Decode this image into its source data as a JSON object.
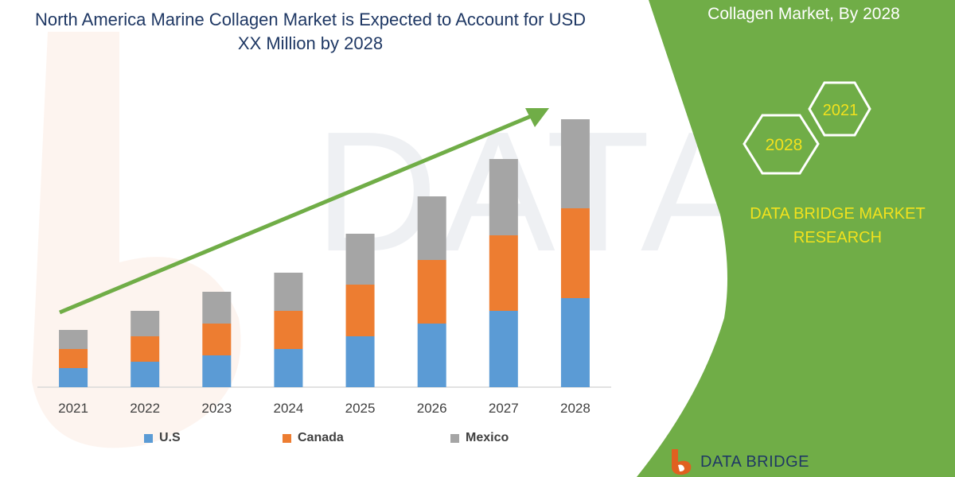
{
  "chart_data": {
    "type": "bar",
    "stacked": true,
    "title": "North America Marine Collagen Market is Expected to Account for USD XX Million by 2028",
    "categories": [
      "2021",
      "2022",
      "2023",
      "2024",
      "2025",
      "2026",
      "2027",
      "2028"
    ],
    "series": [
      {
        "name": "U.S",
        "color": "#5b9bd5",
        "values": [
          24,
          32,
          40,
          48,
          64,
          80,
          96,
          112
        ]
      },
      {
        "name": "Canada",
        "color": "#ed7d31",
        "values": [
          24,
          32,
          40,
          48,
          65,
          80,
          95,
          113
        ]
      },
      {
        "name": "Mexico",
        "color": "#a5a5a5",
        "values": [
          24,
          32,
          40,
          48,
          64,
          80,
          96,
          112
        ]
      }
    ],
    "ylim": [
      0,
      360
    ],
    "grid": false,
    "legend": "bottom",
    "trend_arrow_color": "#70ad47"
  },
  "side_panel": {
    "title": "Collagen Market, By 2028",
    "hex_front": "2028",
    "hex_back": "2021",
    "brand": "DATA BRIDGE MARKET RESEARCH",
    "background": "#70ad47",
    "accent": "#f2e21d"
  },
  "footer": {
    "logo_text": "DATA BRIDGE"
  }
}
